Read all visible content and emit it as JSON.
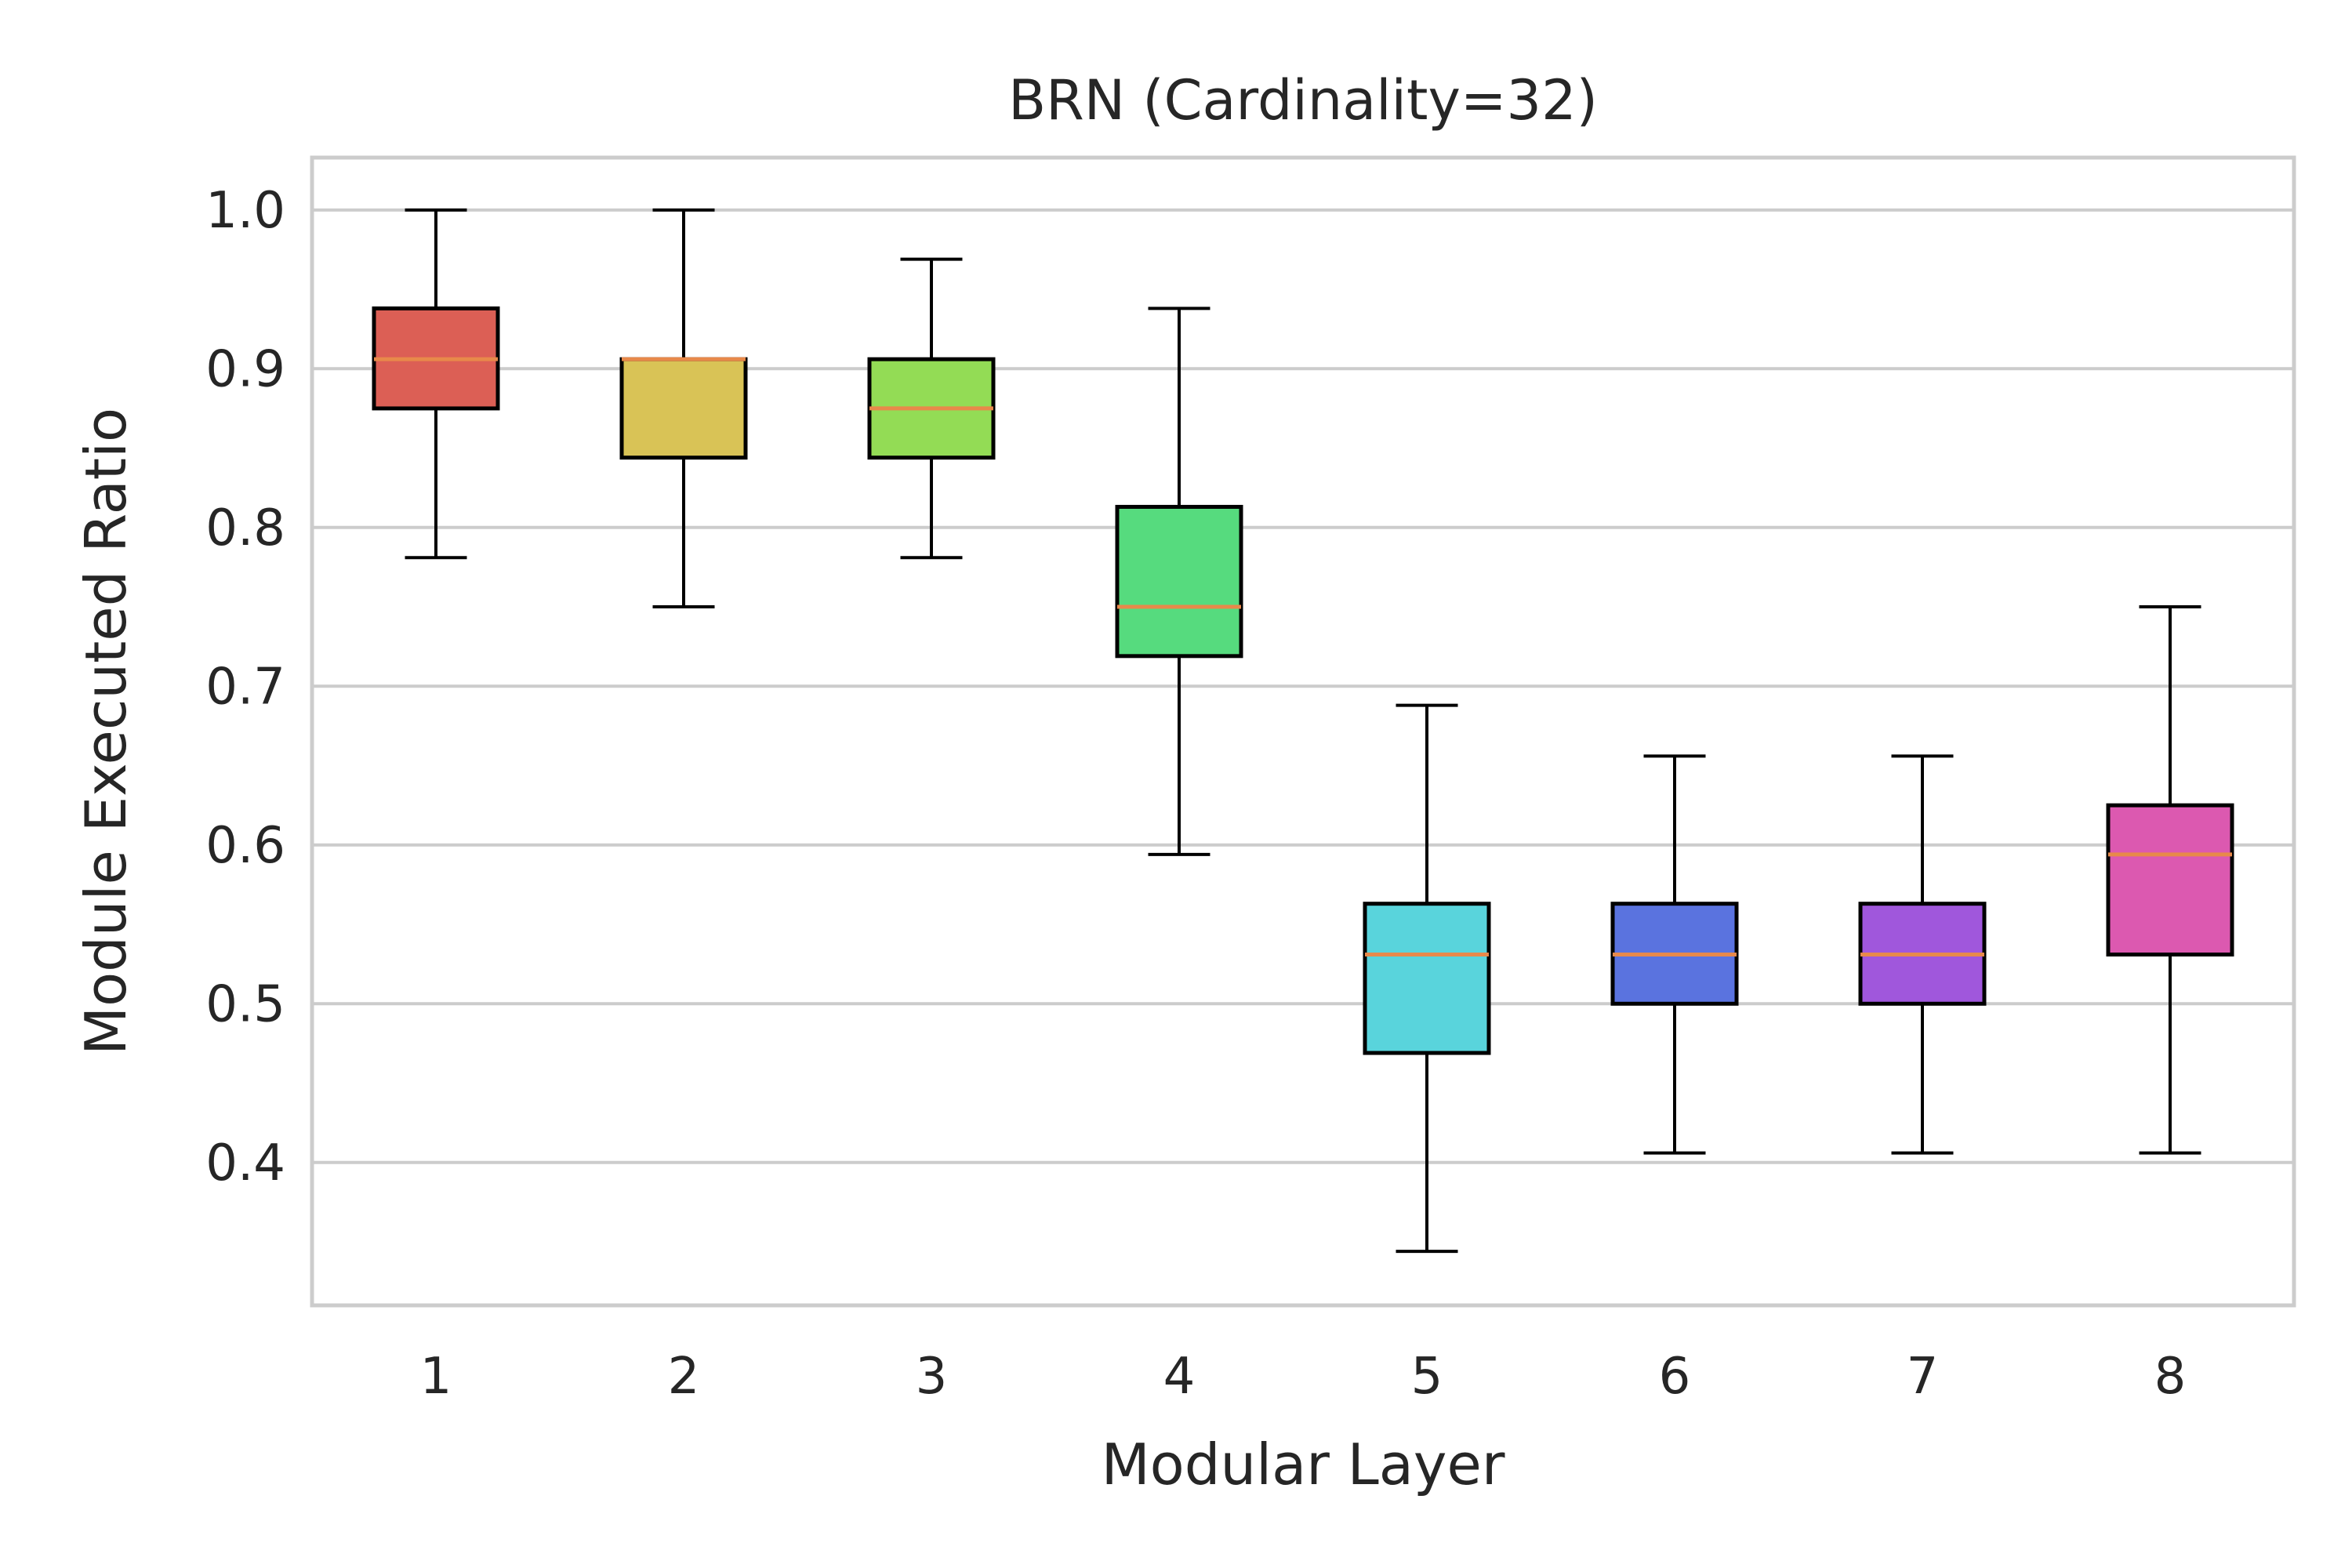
{
  "chart_data": {
    "type": "box",
    "title": "BRN (Cardinality=32)",
    "xlabel": "Modular Layer",
    "ylabel": "Module Executed Ratio",
    "ylim": [
      0.31,
      1.033
    ],
    "yticks": [
      0.4,
      0.5,
      0.6,
      0.7,
      0.8,
      0.9,
      1.0
    ],
    "ytick_labels": [
      "0.4",
      "0.5",
      "0.6",
      "0.7",
      "0.8",
      "0.9",
      "1.0"
    ],
    "grid": "horizontal",
    "median_color": "#e8894a",
    "categories": [
      "1",
      "2",
      "3",
      "4",
      "5",
      "6",
      "7",
      "8"
    ],
    "boxes": [
      {
        "label": "1",
        "whisker_low": 0.781,
        "q1": 0.875,
        "median": 0.906,
        "q3": 0.938,
        "whisker_high": 1.0,
        "color": "#dc5f55"
      },
      {
        "label": "2",
        "whisker_low": 0.75,
        "q1": 0.844,
        "median": 0.906,
        "q3": 0.906,
        "whisker_high": 1.0,
        "color": "#d9c356"
      },
      {
        "label": "3",
        "whisker_low": 0.781,
        "q1": 0.844,
        "median": 0.875,
        "q3": 0.906,
        "whisker_high": 0.969,
        "color": "#93dc55"
      },
      {
        "label": "4",
        "whisker_low": 0.594,
        "q1": 0.719,
        "median": 0.75,
        "q3": 0.813,
        "whisker_high": 0.938,
        "color": "#56db7e"
      },
      {
        "label": "5",
        "whisker_low": 0.344,
        "q1": 0.469,
        "median": 0.531,
        "q3": 0.563,
        "whisker_high": 0.688,
        "color": "#59d4dc"
      },
      {
        "label": "6",
        "whisker_low": 0.406,
        "q1": 0.5,
        "median": 0.531,
        "q3": 0.563,
        "whisker_high": 0.656,
        "color": "#5a73df"
      },
      {
        "label": "7",
        "whisker_low": 0.406,
        "q1": 0.5,
        "median": 0.531,
        "q3": 0.563,
        "whisker_high": 0.656,
        "color": "#a057dc"
      },
      {
        "label": "8",
        "whisker_low": 0.406,
        "q1": 0.531,
        "median": 0.594,
        "q3": 0.625,
        "whisker_high": 0.75,
        "color": "#dc59b0"
      }
    ]
  }
}
